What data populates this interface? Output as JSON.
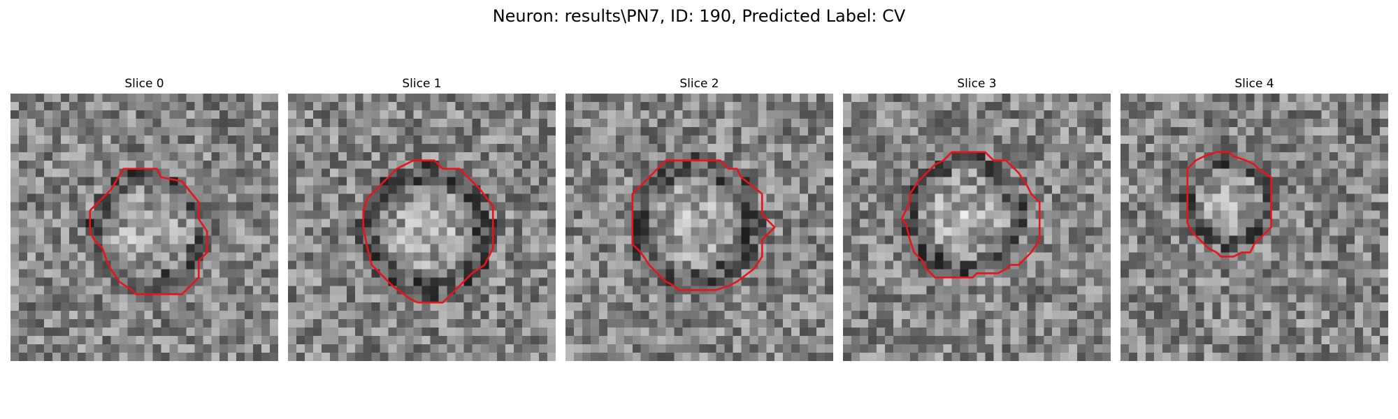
{
  "figure": {
    "title": "Neuron: results\\PN7, ID: 190, Predicted Label: CV"
  },
  "slices": [
    {
      "title": "Slice 0"
    },
    {
      "title": "Slice 1"
    },
    {
      "title": "Slice 2"
    },
    {
      "title": "Slice 3"
    },
    {
      "title": "Slice 4"
    }
  ],
  "colors": {
    "contour": "#e8141b",
    "background": "#ffffff"
  }
}
